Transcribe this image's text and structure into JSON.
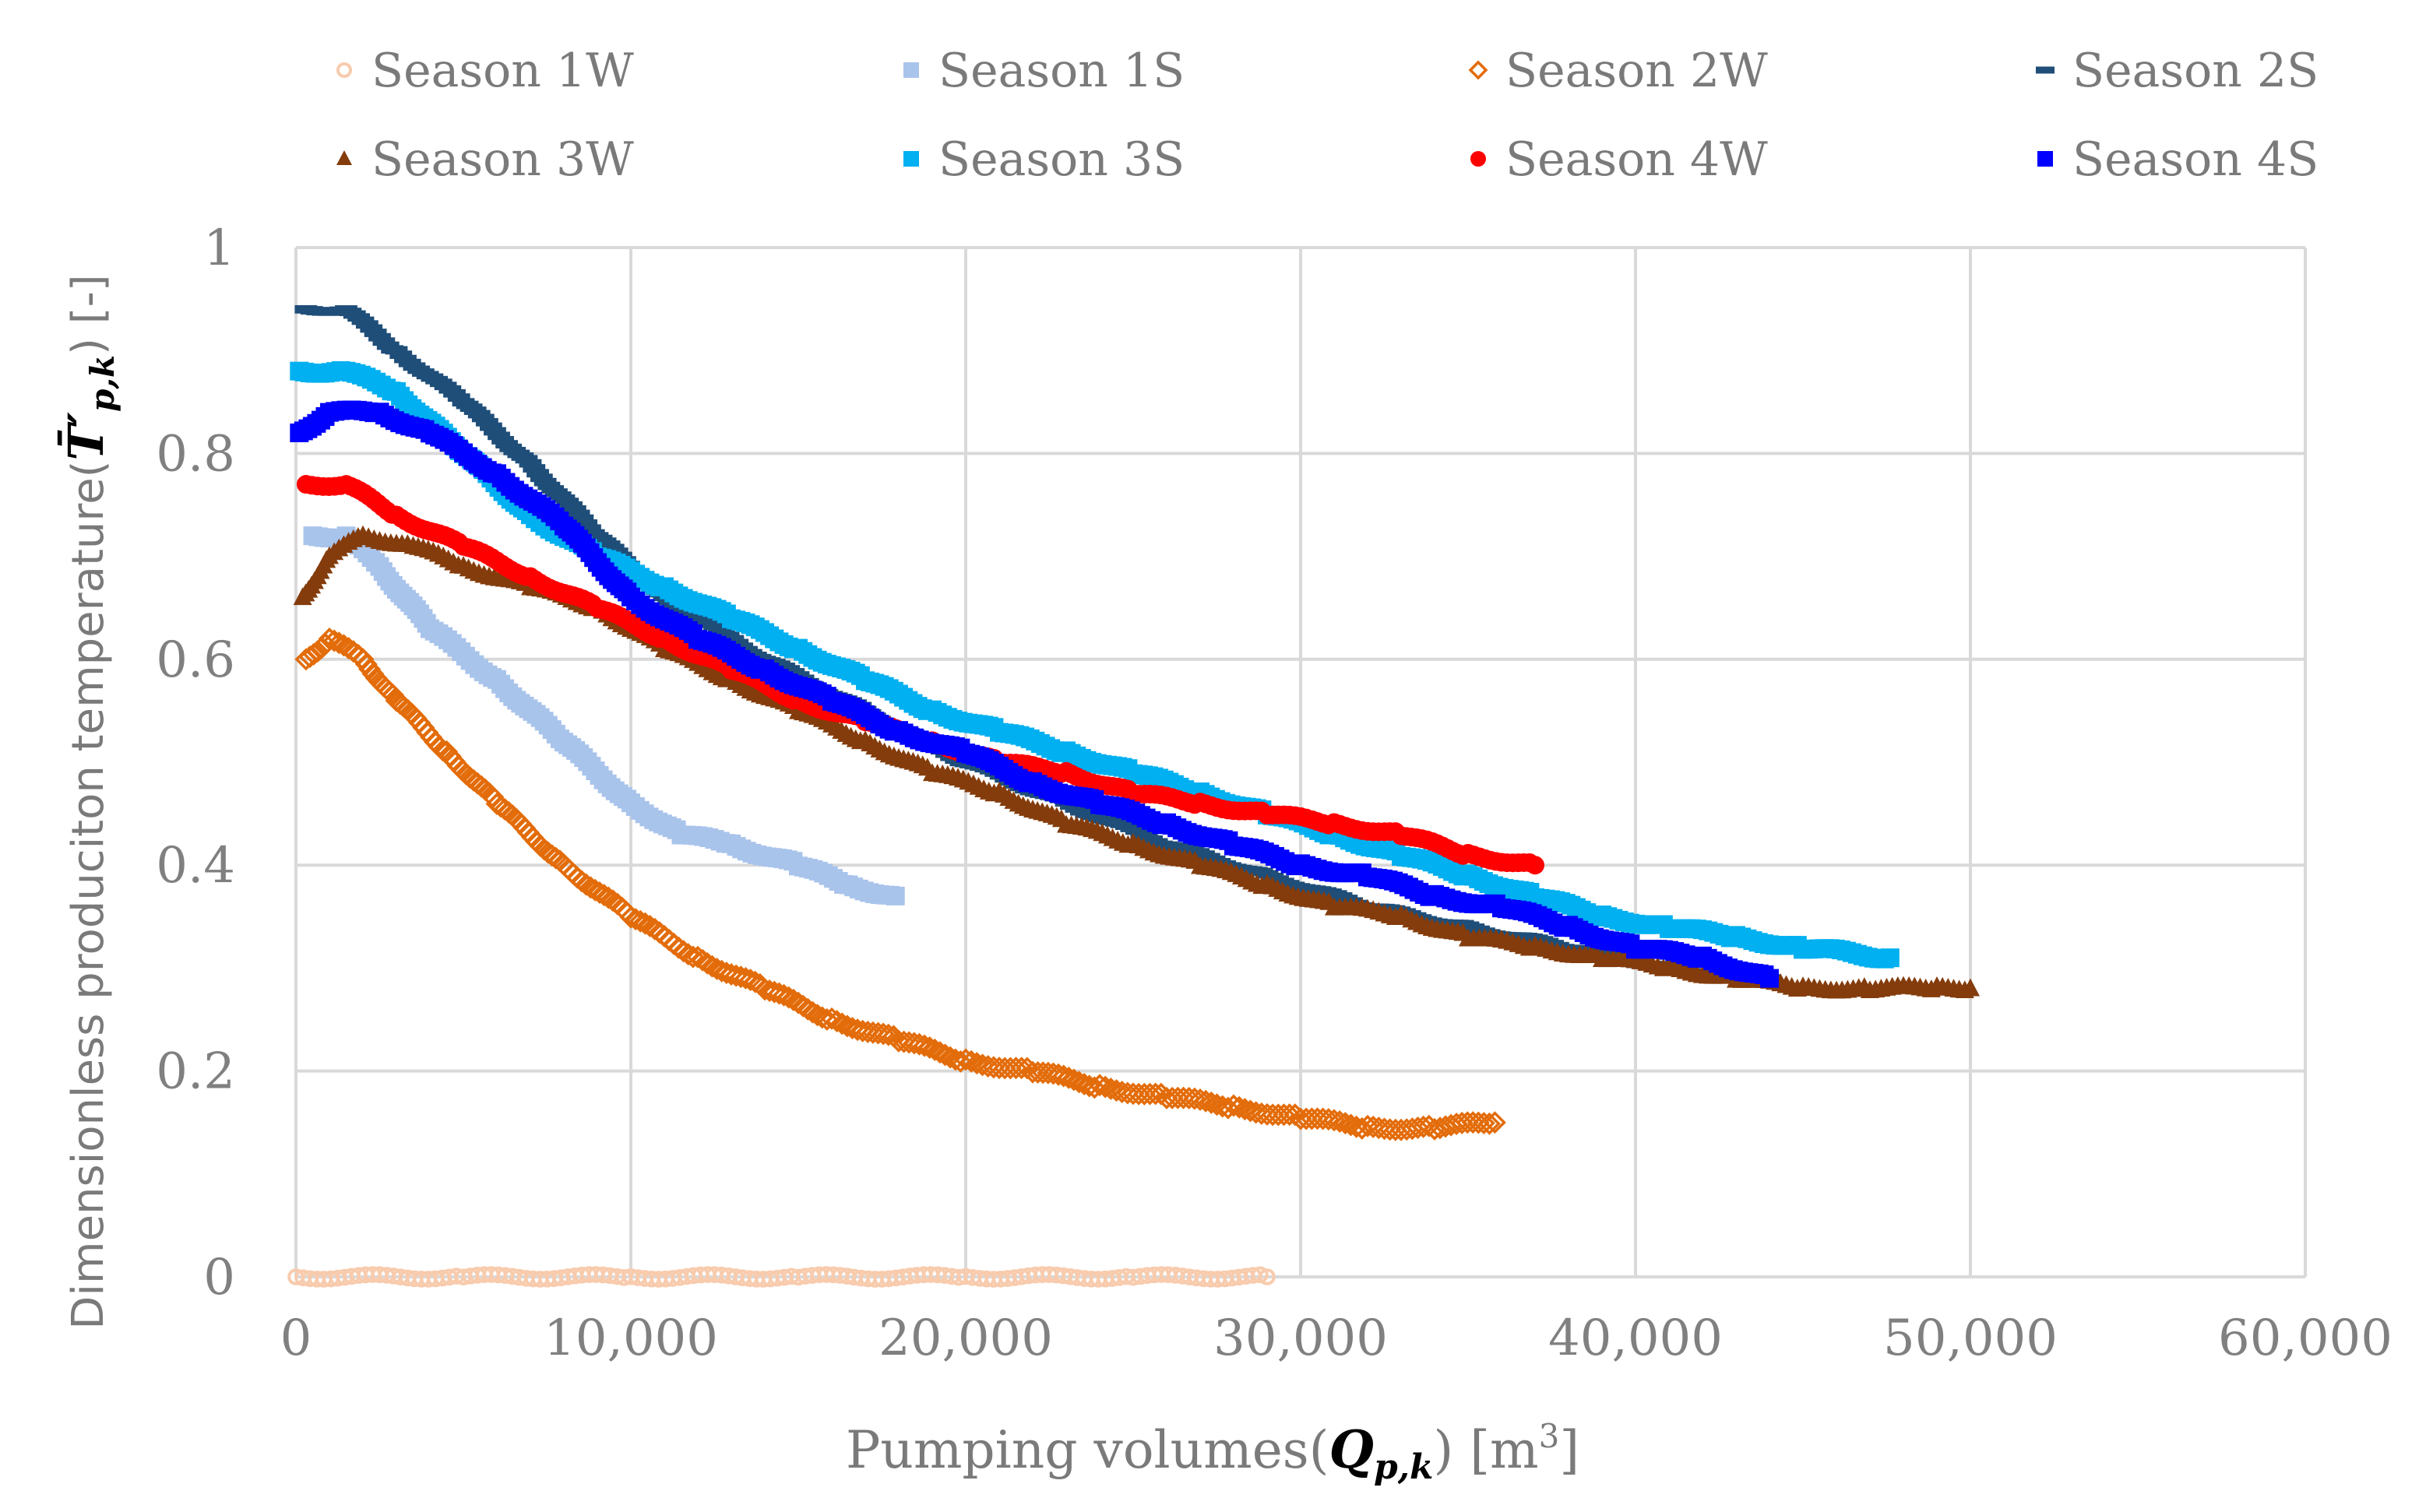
{
  "chart_data": {
    "type": "scatter",
    "xlabel": {
      "prefix": "Pumping volumes(",
      "symbol": "Q",
      "subscript": "p,k",
      "suffix": ") [m",
      "unit_sup": "3",
      "end": "]"
    },
    "ylabel": {
      "prefix": "Dimensionless produciton temperature(",
      "symbol": "T̄′",
      "subscript": "p,k",
      "suffix": ") [-]"
    },
    "xlim": [
      0,
      60000
    ],
    "ylim": [
      0,
      1
    ],
    "x_ticks": [
      "0",
      "10,000",
      "20,000",
      "30,000",
      "40,000",
      "50,000",
      "60,000"
    ],
    "x_tick_values": [
      0,
      10000,
      20000,
      30000,
      40000,
      50000,
      60000
    ],
    "y_ticks": [
      "0",
      "0.2",
      "0.4",
      "0.6",
      "0.8",
      "1"
    ],
    "y_tick_values": [
      0,
      0.2,
      0.4,
      0.6,
      0.8,
      1.0
    ],
    "grid": true,
    "legend_position": "top",
    "series": [
      {
        "name": "Season 1W",
        "color": "#F8CBAD",
        "marker": "circle-open",
        "x": [
          0,
          5000,
          10000,
          15000,
          20000,
          25000,
          29000
        ],
        "y": [
          0.0,
          0.0,
          0.0,
          0.0,
          0.0,
          0.0,
          0.0
        ]
      },
      {
        "name": "Season 1S",
        "color": "#A9C4EB",
        "marker": "square",
        "x": [
          500,
          1500,
          2500,
          4000,
          6000,
          8000,
          10000,
          11500,
          13000,
          15000,
          16500,
          17900
        ],
        "y": [
          0.72,
          0.72,
          0.69,
          0.63,
          0.58,
          0.52,
          0.46,
          0.43,
          0.42,
          0.4,
          0.38,
          0.37
        ]
      },
      {
        "name": "Season 2W",
        "color": "#E36C0A",
        "marker": "diamond-open",
        "x": [
          300,
          1000,
          2000,
          3000,
          4500,
          6000,
          8000,
          10000,
          12000,
          14000,
          16000,
          18000,
          20000,
          22000,
          24000,
          26000,
          28000,
          30000,
          32000,
          34000,
          35800
        ],
        "y": [
          0.6,
          0.62,
          0.6,
          0.56,
          0.51,
          0.46,
          0.4,
          0.35,
          0.31,
          0.28,
          0.25,
          0.23,
          0.21,
          0.2,
          0.185,
          0.175,
          0.165,
          0.155,
          0.145,
          0.145,
          0.15
        ]
      },
      {
        "name": "Season 2S",
        "color": "#1F4E79",
        "marker": "dash",
        "x": [
          300,
          1500,
          3000,
          5000,
          7000,
          9000,
          11000,
          14000,
          17000,
          20000,
          23000,
          26000,
          29000,
          32000,
          35000,
          38000,
          41000,
          44000
        ],
        "y": [
          0.94,
          0.94,
          0.9,
          0.85,
          0.79,
          0.72,
          0.66,
          0.6,
          0.55,
          0.5,
          0.46,
          0.42,
          0.39,
          0.36,
          0.34,
          0.32,
          0.3,
          0.29
        ]
      },
      {
        "name": "Season 3W",
        "color": "#843C0C",
        "marker": "triangle",
        "x": [
          200,
          1000,
          2000,
          3500,
          5000,
          7000,
          9000,
          11000,
          13000,
          15000,
          17000,
          19000,
          21000,
          23000,
          25000,
          27000,
          29000,
          31000,
          33000,
          35000,
          37000,
          39000,
          41000,
          43000,
          45000,
          47000,
          49000,
          50000
        ],
        "y": [
          0.66,
          0.7,
          0.72,
          0.71,
          0.69,
          0.67,
          0.65,
          0.61,
          0.58,
          0.55,
          0.52,
          0.49,
          0.47,
          0.44,
          0.42,
          0.4,
          0.38,
          0.36,
          0.35,
          0.33,
          0.32,
          0.31,
          0.3,
          0.29,
          0.28,
          0.28,
          0.28,
          0.28
        ]
      },
      {
        "name": "Season 3S",
        "color": "#00B0F0",
        "marker": "square",
        "x": [
          100,
          1500,
          3000,
          5000,
          7000,
          9000,
          11000,
          13000,
          15000,
          17000,
          19000,
          21000,
          23000,
          25000,
          27000,
          29000,
          31000,
          33000,
          35000,
          37000,
          39000,
          41000,
          43000,
          45000,
          47600
        ],
        "y": [
          0.88,
          0.88,
          0.86,
          0.8,
          0.74,
          0.7,
          0.67,
          0.64,
          0.61,
          0.58,
          0.55,
          0.53,
          0.51,
          0.49,
          0.47,
          0.45,
          0.43,
          0.41,
          0.39,
          0.37,
          0.35,
          0.34,
          0.33,
          0.32,
          0.31
        ]
      },
      {
        "name": "Season 4W",
        "color": "#FF0000",
        "marker": "circle",
        "x": [
          300,
          1500,
          3000,
          5000,
          7000,
          9000,
          11000,
          13000,
          15000,
          17000,
          19000,
          21000,
          23000,
          25000,
          27000,
          29000,
          31000,
          33000,
          35000,
          37000
        ],
        "y": [
          0.77,
          0.77,
          0.74,
          0.71,
          0.68,
          0.65,
          0.62,
          0.59,
          0.56,
          0.54,
          0.52,
          0.5,
          0.49,
          0.47,
          0.46,
          0.45,
          0.44,
          0.43,
          0.41,
          0.4
        ]
      },
      {
        "name": "Season 4S",
        "color": "#0000FF",
        "marker": "square",
        "x": [
          100,
          1000,
          2500,
          4000,
          6000,
          8000,
          10000,
          12000,
          14000,
          16000,
          18000,
          20000,
          22000,
          24000,
          26000,
          28000,
          30000,
          32000,
          34000,
          36000,
          38000,
          40000,
          42000,
          44000
        ],
        "y": [
          0.82,
          0.84,
          0.84,
          0.82,
          0.78,
          0.73,
          0.66,
          0.62,
          0.59,
          0.56,
          0.53,
          0.51,
          0.48,
          0.46,
          0.44,
          0.42,
          0.4,
          0.39,
          0.37,
          0.36,
          0.34,
          0.32,
          0.31,
          0.29
        ]
      }
    ]
  }
}
